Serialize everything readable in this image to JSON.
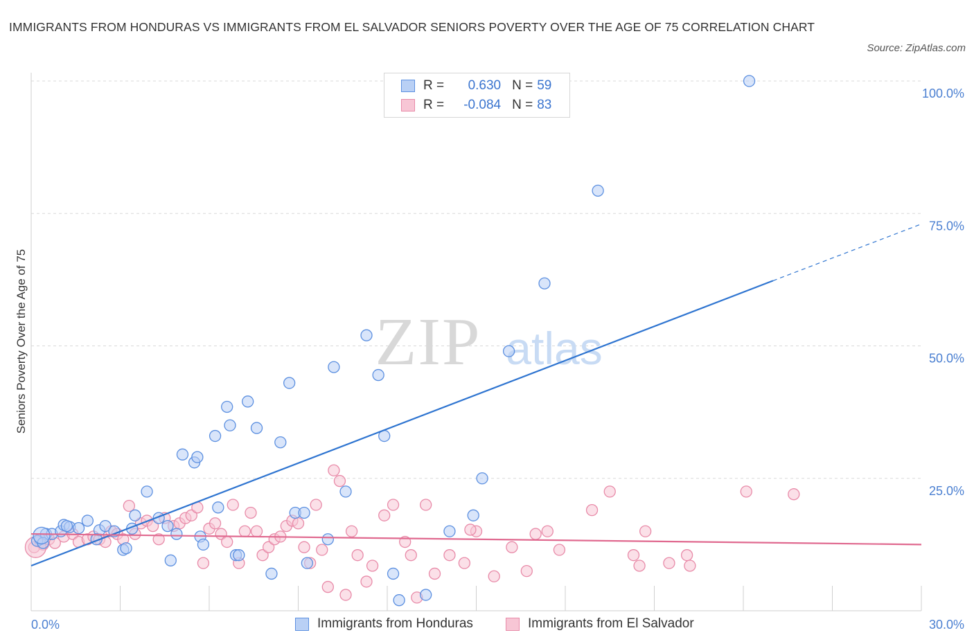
{
  "title": "IMMIGRANTS FROM HONDURAS VS IMMIGRANTS FROM EL SALVADOR SENIORS POVERTY OVER THE AGE OF 75 CORRELATION CHART",
  "source": "Source: ZipAtlas.com",
  "watermark": {
    "zip": "ZIP",
    "atlas": "atlas"
  },
  "colors": {
    "blue": "#5b8fe0",
    "blue_fill": "#b9d0f5",
    "blue_line": "#2e74d0",
    "pink": "#e88aa8",
    "pink_fill": "#f7c6d5",
    "pink_line": "#e0698f",
    "grid": "#d9d9d9",
    "axis_text": "#4a7fd1"
  },
  "legend": {
    "rows": [
      {
        "r_label": "R =",
        "r_value": "0.630",
        "n_label": "N =",
        "n_value": "59"
      },
      {
        "r_label": "R =",
        "r_value": "-0.084",
        "n_label": "N =",
        "n_value": "83"
      }
    ]
  },
  "bottom_legend": [
    "Immigrants from Honduras",
    "Immigrants from El Salvador"
  ],
  "chart_data": {
    "type": "scatter",
    "title": "IMMIGRANTS FROM HONDURAS VS IMMIGRANTS FROM EL SALVADOR SENIORS POVERTY OVER THE AGE OF 75 CORRELATION CHART",
    "xlabel": "",
    "ylabel": "Seniors Poverty Over the Age of 75",
    "xlim": [
      0,
      30
    ],
    "ylim": [
      0,
      100
    ],
    "x_tick_labels": [
      "0.0%",
      "30.0%"
    ],
    "y_tick_labels": [
      "100.0%",
      "75.0%",
      "50.0%",
      "25.0%"
    ],
    "y_ticks": [
      100,
      75,
      50,
      25
    ],
    "series": [
      {
        "name": "Immigrants from Honduras",
        "color": "blue",
        "trend": {
          "x0": 0,
          "y0": 8.5,
          "x1": 25.0,
          "y1": 62.3,
          "dash_to_x": 30.0,
          "dash_to_y": 73.0
        },
        "points": [
          [
            0.3,
            13.5
          ],
          [
            0.5,
            14.5
          ],
          [
            0.7,
            14.5
          ],
          [
            1.0,
            15.0
          ],
          [
            1.1,
            16.2
          ],
          [
            1.3,
            15.8
          ],
          [
            1.6,
            15.6
          ],
          [
            1.9,
            17.0
          ],
          [
            2.3,
            15.2
          ],
          [
            2.5,
            16.0
          ],
          [
            2.8,
            15.0
          ],
          [
            3.1,
            11.5
          ],
          [
            3.2,
            11.8
          ],
          [
            3.5,
            18.0
          ],
          [
            3.9,
            22.5
          ],
          [
            4.3,
            17.5
          ],
          [
            4.6,
            16.0
          ],
          [
            4.7,
            9.5
          ],
          [
            4.9,
            14.5
          ],
          [
            5.1,
            29.5
          ],
          [
            5.5,
            28.0
          ],
          [
            5.6,
            29.0
          ],
          [
            5.7,
            14.0
          ],
          [
            5.8,
            12.5
          ],
          [
            6.2,
            33.0
          ],
          [
            6.3,
            19.5
          ],
          [
            6.6,
            38.5
          ],
          [
            6.7,
            35.0
          ],
          [
            6.9,
            10.5
          ],
          [
            7.0,
            10.5
          ],
          [
            7.3,
            39.5
          ],
          [
            7.6,
            34.5
          ],
          [
            8.1,
            7.0
          ],
          [
            8.4,
            31.8
          ],
          [
            8.7,
            43.0
          ],
          [
            8.9,
            18.5
          ],
          [
            9.2,
            18.5
          ],
          [
            9.3,
            9.0
          ],
          [
            10.0,
            13.5
          ],
          [
            10.2,
            46.0
          ],
          [
            10.6,
            22.5
          ],
          [
            11.3,
            52.0
          ],
          [
            11.7,
            44.5
          ],
          [
            11.9,
            33.0
          ],
          [
            12.2,
            7.0
          ],
          [
            12.4,
            2.0
          ],
          [
            13.3,
            3.0
          ],
          [
            14.1,
            15.0
          ],
          [
            14.9,
            18.0
          ],
          [
            15.2,
            25.0
          ],
          [
            16.1,
            49.0
          ],
          [
            17.3,
            61.8
          ],
          [
            19.1,
            79.3
          ],
          [
            24.2,
            100.0
          ],
          [
            0.2,
            13.2
          ],
          [
            0.4,
            12.8
          ],
          [
            1.2,
            16.0
          ],
          [
            2.2,
            13.5
          ],
          [
            3.4,
            15.5
          ]
        ]
      },
      {
        "name": "Immigrants from El Salvador",
        "color": "pink",
        "trend": {
          "x0": 0,
          "y0": 14.5,
          "x1": 30.0,
          "y1": 12.5
        },
        "points": [
          [
            0.1,
            12.0
          ],
          [
            0.3,
            13.0
          ],
          [
            0.4,
            12.5
          ],
          [
            0.6,
            13.5
          ],
          [
            0.8,
            12.8
          ],
          [
            1.1,
            14.0
          ],
          [
            1.4,
            14.5
          ],
          [
            1.6,
            13.0
          ],
          [
            1.9,
            13.5
          ],
          [
            2.1,
            14.0
          ],
          [
            2.3,
            13.5
          ],
          [
            2.5,
            13.0
          ],
          [
            2.7,
            15.0
          ],
          [
            2.9,
            14.5
          ],
          [
            3.1,
            13.5
          ],
          [
            3.3,
            19.8
          ],
          [
            3.5,
            14.5
          ],
          [
            3.7,
            16.5
          ],
          [
            3.9,
            17.0
          ],
          [
            4.1,
            16.0
          ],
          [
            4.3,
            13.5
          ],
          [
            4.5,
            17.5
          ],
          [
            4.8,
            16.0
          ],
          [
            5.0,
            16.5
          ],
          [
            5.2,
            17.5
          ],
          [
            5.4,
            18.0
          ],
          [
            5.6,
            19.5
          ],
          [
            5.8,
            9.0
          ],
          [
            6.0,
            15.5
          ],
          [
            6.2,
            16.5
          ],
          [
            6.4,
            14.5
          ],
          [
            6.6,
            13.0
          ],
          [
            6.8,
            20.0
          ],
          [
            7.0,
            9.0
          ],
          [
            7.2,
            15.0
          ],
          [
            7.4,
            18.5
          ],
          [
            7.6,
            15.0
          ],
          [
            7.8,
            10.5
          ],
          [
            8.0,
            12.0
          ],
          [
            8.2,
            13.5
          ],
          [
            8.4,
            14.0
          ],
          [
            8.6,
            16.0
          ],
          [
            8.8,
            17.0
          ],
          [
            9.0,
            16.5
          ],
          [
            9.2,
            12.0
          ],
          [
            9.4,
            9.0
          ],
          [
            9.6,
            20.0
          ],
          [
            9.8,
            11.5
          ],
          [
            10.0,
            4.5
          ],
          [
            10.2,
            26.5
          ],
          [
            10.4,
            24.5
          ],
          [
            10.6,
            3.0
          ],
          [
            10.8,
            15.0
          ],
          [
            11.0,
            10.5
          ],
          [
            11.3,
            5.5
          ],
          [
            11.5,
            8.5
          ],
          [
            11.9,
            18.0
          ],
          [
            12.2,
            20.0
          ],
          [
            12.6,
            13.0
          ],
          [
            12.8,
            10.5
          ],
          [
            13.0,
            2.5
          ],
          [
            13.3,
            20.0
          ],
          [
            13.6,
            7.0
          ],
          [
            14.1,
            10.5
          ],
          [
            14.6,
            9.0
          ],
          [
            15.0,
            15.0
          ],
          [
            15.6,
            6.5
          ],
          [
            16.2,
            12.0
          ],
          [
            16.7,
            7.5
          ],
          [
            17.0,
            14.5
          ],
          [
            17.4,
            15.0
          ],
          [
            17.8,
            11.5
          ],
          [
            18.9,
            19.0
          ],
          [
            19.5,
            22.5
          ],
          [
            20.3,
            10.5
          ],
          [
            20.5,
            8.5
          ],
          [
            20.7,
            15.0
          ],
          [
            21.5,
            9.0
          ],
          [
            22.1,
            10.5
          ],
          [
            22.2,
            8.5
          ],
          [
            24.1,
            22.5
          ],
          [
            25.7,
            22.0
          ],
          [
            14.8,
            15.3
          ]
        ]
      }
    ]
  }
}
